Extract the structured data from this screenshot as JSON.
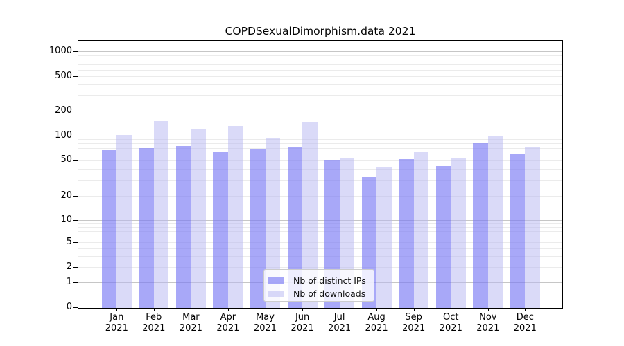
{
  "title": "COPDSexualDimorphism.data 2021",
  "chart_data": {
    "type": "bar",
    "categories": [
      "Jan 2021",
      "Feb 2021",
      "Mar 2021",
      "Apr 2021",
      "May 2021",
      "Jun 2021",
      "Jul 2021",
      "Aug 2021",
      "Sep 2021",
      "Oct 2021",
      "Nov 2021",
      "Dec 2021"
    ],
    "series": [
      {
        "name": "Nb of distinct IPs",
        "color": "rgba(122,122,244,0.65)",
        "solid_color": "#a9a9f8",
        "values": [
          66,
          70,
          75,
          62,
          69,
          72,
          50,
          32,
          51,
          43,
          82,
          59
        ]
      },
      {
        "name": "Nb of downloads",
        "color": "rgba(182,182,242,0.51)",
        "solid_color": "#dadaf8",
        "values": [
          103,
          150,
          119,
          130,
          92,
          146,
          52,
          41,
          63,
          53,
          100,
          71
        ]
      }
    ],
    "yticks": [
      0,
      1,
      2,
      5,
      10,
      20,
      50,
      100,
      200,
      500,
      1000
    ],
    "ylim": [
      0,
      1000
    ],
    "yscale": "log-like with 0 baseline",
    "xlabel": "",
    "ylabel": "",
    "grid": "horizontal, log minor + major lines",
    "legend_position": "bottom-center inside plot"
  },
  "colors": {
    "grid_major": "#c6c6c6",
    "grid_minor": "#ebebeb",
    "axis_frame": "#000000",
    "legend_border": "#cccccc"
  }
}
